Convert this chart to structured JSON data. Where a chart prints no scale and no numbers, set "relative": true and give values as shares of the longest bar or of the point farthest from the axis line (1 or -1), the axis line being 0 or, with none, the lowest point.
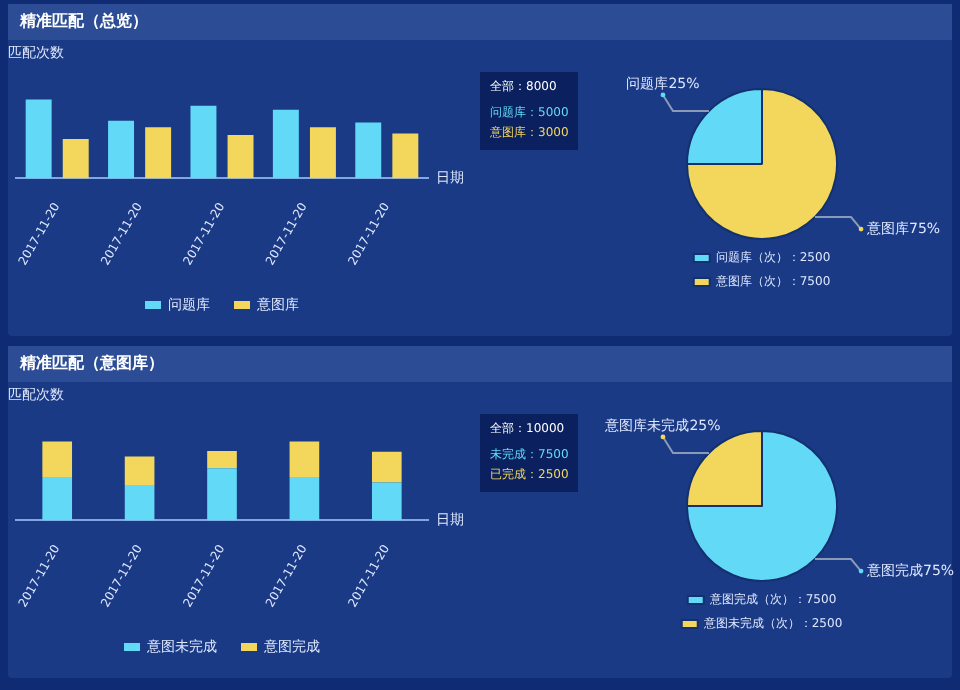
{
  "chart_data": [
    {
      "type": "bar",
      "title": "精准匹配（总览）",
      "ylabel": "匹配次数",
      "xlabel": "日期",
      "categories": [
        "2017-11-20",
        "2017-11-20",
        "2017-11-20",
        "2017-11-20",
        "2017-11-20"
      ],
      "relative": true,
      "legend": "bottom",
      "series": [
        {
          "name": "问题库",
          "color": "#62d9f6",
          "values": [
            1,
            0.73,
            0.92,
            0.87,
            0.71
          ]
        },
        {
          "name": "意图库",
          "color": "#f2d75c",
          "values": [
            0.5,
            0.65,
            0.55,
            0.65,
            0.57
          ]
        }
      ],
      "annotations": [
        "全部：8000",
        "问题库：5000",
        "意图库：3000"
      ]
    },
    {
      "type": "pie",
      "categories": [
        "问题库（次）：2500",
        "意图库（次）：7500"
      ],
      "values": [
        2500,
        7500
      ],
      "colors": [
        "#62d9f6",
        "#f2d75c"
      ],
      "value_labels": [
        "问题库25%",
        "意图库75%"
      ],
      "legend": "bottom"
    },
    {
      "type": "bar",
      "title": "精准匹配（意图库）",
      "ylabel": "匹配次数",
      "xlabel": "日期",
      "categories": [
        "2017-11-20",
        "2017-11-20",
        "2017-11-20",
        "2017-11-20",
        "2017-11-20"
      ],
      "relative": true,
      "stacked": true,
      "legend": "bottom",
      "series": [
        {
          "name": "意图未完成",
          "color": "#62d9f6",
          "values": [
            0.55,
            0.45,
            0.66,
            0.55,
            0.48
          ]
        },
        {
          "name": "意图完成",
          "color": "#f2d75c",
          "values": [
            0.45,
            0.36,
            0.22,
            0.45,
            0.39
          ]
        }
      ],
      "annotations": [
        "全部：10000",
        "未完成：7500",
        "已完成：2500"
      ]
    },
    {
      "type": "pie",
      "categories": [
        "意图完成（次）：7500",
        "意图未完成（次）：2500"
      ],
      "values": [
        7500,
        2500
      ],
      "colors": [
        "#62d9f6",
        "#f2d75c"
      ],
      "value_labels": [
        "意图完成75%",
        "意图库未完成25%"
      ],
      "legend": "bottom"
    }
  ]
}
